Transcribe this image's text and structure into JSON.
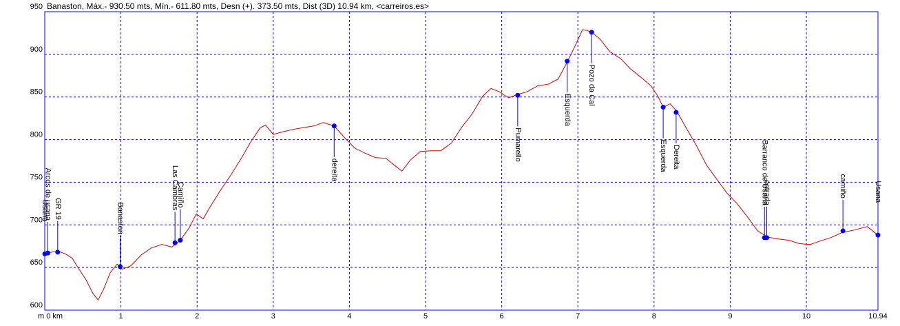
{
  "chart_data": {
    "type": "line",
    "title": "Banaston, Máx.- 930.50 mts, Mín.- 611.80 mts, Desn (+). 373.50 mts, Dist (3D) 10.94 km, <carreiros.es>",
    "xlim": [
      0,
      10.94
    ],
    "ylim": [
      600,
      950
    ],
    "xticks": [
      {
        "value": 0,
        "label": "m 0 km"
      },
      1,
      2,
      3,
      4,
      5,
      6,
      7,
      8,
      9,
      10,
      10.94
    ],
    "yticks": [
      600,
      650,
      700,
      750,
      800,
      850,
      900,
      950
    ],
    "grid": true,
    "x": [
      0,
      0.09,
      0.18,
      0.27,
      0.36,
      0.45,
      0.54,
      0.63,
      0.7,
      0.77,
      0.86,
      0.95,
      1.02,
      1.13,
      1.27,
      1.4,
      1.54,
      1.67,
      1.78,
      1.9,
      1.99,
      2.08,
      2.17,
      2.31,
      2.44,
      2.58,
      2.71,
      2.83,
      2.9,
      3.0,
      3.12,
      3.26,
      3.39,
      3.53,
      3.66,
      3.8,
      3.94,
      4.07,
      4.21,
      4.34,
      4.48,
      4.59,
      4.69,
      4.8,
      4.93,
      5.07,
      5.2,
      5.34,
      5.47,
      5.61,
      5.75,
      5.86,
      5.97,
      6.09,
      6.21,
      6.33,
      6.47,
      6.61,
      6.74,
      6.86,
      6.97,
      7.06,
      7.12,
      7.18,
      7.29,
      7.42,
      7.56,
      7.69,
      7.83,
      7.96,
      8.05,
      8.12,
      8.21,
      8.3,
      8.42,
      8.55,
      8.69,
      8.82,
      8.96,
      9.09,
      9.23,
      9.36,
      9.48,
      9.59,
      9.77,
      9.91,
      10.05,
      10.18,
      10.32,
      10.47,
      10.63,
      10.8,
      10.94
    ],
    "series": [
      {
        "color": "#cc0000",
        "values": [
          666,
          668,
          669,
          666,
          661,
          648,
          636,
          620,
          612,
          624,
          644,
          654,
          648,
          652,
          665,
          673,
          677,
          674,
          682,
          697,
          713,
          707,
          721,
          741,
          758,
          778,
          798,
          814,
          817,
          806,
          809,
          812,
          814,
          816,
          820,
          816,
          802,
          790,
          784,
          779,
          778,
          770,
          763,
          776,
          786,
          787,
          787,
          796,
          814,
          830,
          851,
          860,
          856,
          849,
          853,
          856,
          863,
          865,
          871,
          891,
          911,
          929,
          928,
          926,
          918,
          903,
          895,
          883,
          873,
          863,
          851,
          838,
          842,
          833,
          814,
          794,
          770,
          754,
          737,
          725,
          709,
          693,
          686,
          684,
          682,
          678,
          677,
          681,
          685,
          691,
          694,
          698,
          688
        ]
      }
    ],
    "waypoint_color": "#0000ff",
    "waypoints": [
      {
        "label": "Usana",
        "x": 0,
        "y": 666,
        "side": "above"
      },
      {
        "label": "Arcos de usana",
        "x": 0.04,
        "y": 667,
        "side": "above"
      },
      {
        "label": "GR 19",
        "x": 0.17,
        "y": 668,
        "side": "above"
      },
      {
        "label": "Banaston",
        "x": 0.99,
        "y": 651,
        "side": "above"
      },
      {
        "label": "Las Cambras",
        "x": 1.71,
        "y": 679,
        "side": "above"
      },
      {
        "label": "Camiño",
        "x": 1.78,
        "y": 682,
        "side": "above"
      },
      {
        "label": "dereita",
        "x": 3.8,
        "y": 816,
        "side": "below"
      },
      {
        "label": "Pumarello",
        "x": 6.21,
        "y": 852,
        "side": "below"
      },
      {
        "label": "Esquerda",
        "x": 6.86,
        "y": 892,
        "side": "below"
      },
      {
        "label": "Pozo da Cal",
        "x": 7.18,
        "y": 926,
        "side": "below"
      },
      {
        "label": "Esquerda",
        "x": 8.12,
        "y": 838,
        "side": "below"
      },
      {
        "label": "Dereita",
        "x": 8.29,
        "y": 832,
        "side": "below"
      },
      {
        "label": "Barranco de Usana",
        "x": 9.45,
        "y": 685,
        "side": "above"
      },
      {
        "label": "estrada",
        "x": 9.48,
        "y": 685,
        "side": "above"
      },
      {
        "label": "camiño",
        "x": 10.48,
        "y": 693,
        "side": "above"
      },
      {
        "label": "Usana",
        "x": 10.94,
        "y": 688,
        "side": "above"
      }
    ]
  }
}
